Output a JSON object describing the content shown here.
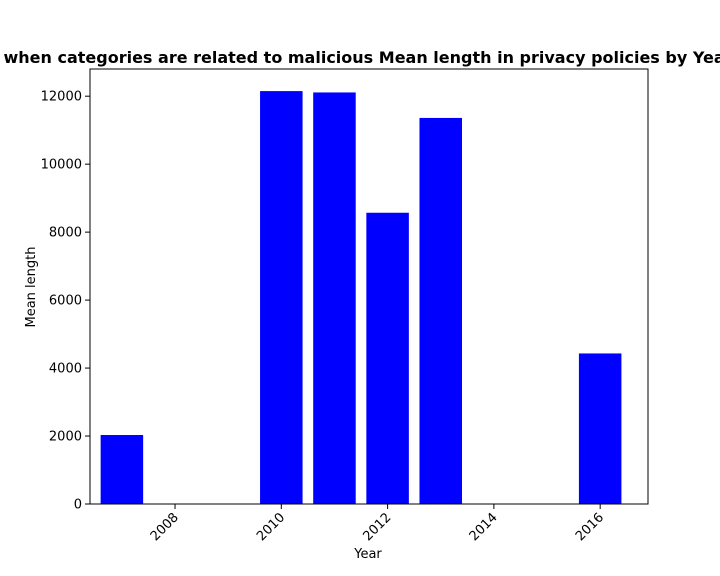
{
  "chart_data": {
    "type": "bar",
    "title": "when categories are related to malicious Mean length in privacy policies by Year",
    "xlabel": "Year",
    "ylabel": "Mean length",
    "xlim": [
      2006.4,
      2016.9
    ],
    "ylim": [
      0,
      12800
    ],
    "x_ticks": [
      2008,
      2010,
      2012,
      2014,
      2016
    ],
    "y_ticks": [
      0,
      2000,
      4000,
      6000,
      8000,
      10000,
      12000
    ],
    "bar_color": "#0000ff",
    "bar_width_years": 0.8,
    "grid": false,
    "bars": [
      {
        "x": 2007,
        "value": 2030
      },
      {
        "x": 2010,
        "value": 12150
      },
      {
        "x": 2011,
        "value": 12110
      },
      {
        "x": 2012,
        "value": 8570
      },
      {
        "x": 2013,
        "value": 11360
      },
      {
        "x": 2016,
        "value": 4430
      }
    ]
  }
}
